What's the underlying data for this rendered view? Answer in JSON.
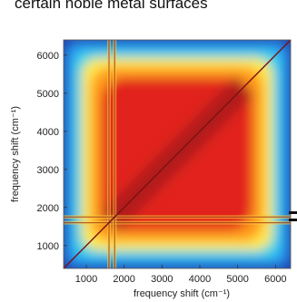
{
  "header": {
    "title": "certain noble metal surfaces"
  },
  "chart_data": {
    "type": "heatmap",
    "title": "",
    "xlabel": "frequency shift (cm⁻¹)",
    "ylabel": "frequency shift (cm⁻¹)",
    "xlim": [
      400,
      6400
    ],
    "ylim": [
      400,
      6400
    ],
    "x_ticks": [
      1000,
      2000,
      3000,
      4000,
      5000,
      6000
    ],
    "y_ticks": [
      1000,
      2000,
      3000,
      4000,
      5000,
      6000
    ],
    "colormap": [
      "#1f3fb0",
      "#2a9df4",
      "#39d6e6",
      "#ffe94a",
      "#ff9a1f",
      "#e2231f",
      "#a11a1a"
    ],
    "features": {
      "diagonal": "high correlation along x = y",
      "bands": [
        1600,
        1750
      ],
      "overall": "high values in interior, low (blue) along outer edges"
    }
  }
}
